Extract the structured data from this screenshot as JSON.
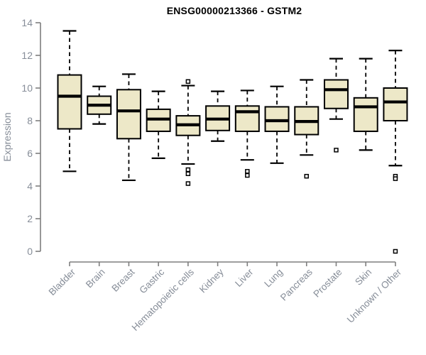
{
  "chart_data": {
    "type": "boxplot",
    "title": "ENSG00000213366 - GSTM2",
    "ylabel": "Expression",
    "xlabel": "",
    "ylim": [
      0,
      14
    ],
    "yticks": [
      0,
      2,
      4,
      6,
      8,
      10,
      12,
      14
    ],
    "grid": false,
    "legend": "none",
    "categories": [
      "Bladder",
      "Brain",
      "Breast",
      "Gastric",
      "Hematopoietic cells",
      "Kidney",
      "Liver",
      "Lung",
      "Pancreas",
      "Prostate",
      "Skin",
      "Unknown / Other"
    ],
    "series": [
      {
        "category": "Bladder",
        "whisker_low": 4.9,
        "q1": 7.5,
        "median": 9.5,
        "q3": 10.8,
        "whisker_high": 13.5,
        "outliers": []
      },
      {
        "category": "Brain",
        "whisker_low": 7.8,
        "q1": 8.4,
        "median": 8.95,
        "q3": 9.5,
        "whisker_high": 10.1,
        "outliers": []
      },
      {
        "category": "Breast",
        "whisker_low": 4.35,
        "q1": 6.9,
        "median": 8.6,
        "q3": 9.9,
        "whisker_high": 10.85,
        "outliers": []
      },
      {
        "category": "Gastric",
        "whisker_low": 5.7,
        "q1": 7.35,
        "median": 8.1,
        "q3": 8.7,
        "whisker_high": 9.8,
        "outliers": []
      },
      {
        "category": "Hematopoietic cells",
        "whisker_low": 5.35,
        "q1": 7.1,
        "median": 7.75,
        "q3": 8.3,
        "whisker_high": 10.15,
        "outliers": [
          10.4,
          5.0,
          4.75,
          4.15
        ]
      },
      {
        "category": "Kidney",
        "whisker_low": 6.75,
        "q1": 7.4,
        "median": 8.1,
        "q3": 8.9,
        "whisker_high": 9.8,
        "outliers": []
      },
      {
        "category": "Liver",
        "whisker_low": 5.6,
        "q1": 7.35,
        "median": 8.55,
        "q3": 8.9,
        "whisker_high": 9.85,
        "outliers": [
          4.9,
          4.65
        ]
      },
      {
        "category": "Lung",
        "whisker_low": 5.4,
        "q1": 7.35,
        "median": 8.0,
        "q3": 8.85,
        "whisker_high": 10.1,
        "outliers": []
      },
      {
        "category": "Pancreas",
        "whisker_low": 5.9,
        "q1": 7.15,
        "median": 7.95,
        "q3": 8.85,
        "whisker_high": 10.5,
        "outliers": [
          4.6
        ]
      },
      {
        "category": "Prostate",
        "whisker_low": 8.1,
        "q1": 8.75,
        "median": 9.9,
        "q3": 10.5,
        "whisker_high": 11.8,
        "outliers": [
          6.2
        ]
      },
      {
        "category": "Skin",
        "whisker_low": 6.2,
        "q1": 7.35,
        "median": 8.85,
        "q3": 9.4,
        "whisker_high": 11.8,
        "outliers": []
      },
      {
        "category": "Unknown / Other",
        "whisker_low": 5.25,
        "q1": 8.0,
        "median": 9.15,
        "q3": 10.0,
        "whisker_high": 12.3,
        "outliers": [
          4.6,
          4.45,
          0
        ]
      }
    ],
    "colors": {
      "box_fill": "#EDE8C8",
      "box_border": "#000000",
      "median": "#000000",
      "whisker": "#000000",
      "outlier_fill": "#FFFFFF",
      "axis_line": "#7E7E7E",
      "axis_text": "#868D98",
      "title": "#000000",
      "background": "#FFFFFF"
    }
  }
}
